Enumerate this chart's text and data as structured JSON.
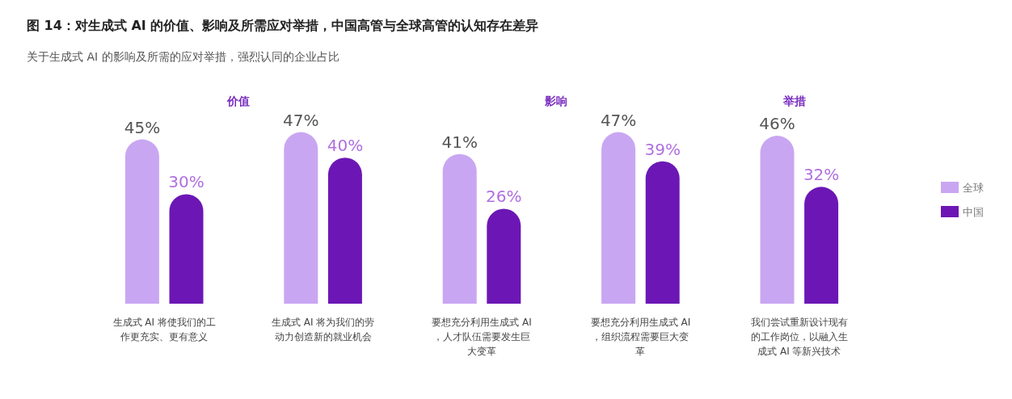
{
  "chart_data": {
    "type": "bar",
    "title": "图 14：对生成式 AI 的价值、影响及所需应对举措，中国高管与全球高管的认知存在差异",
    "subtitle": "关于生成式 AI 的影响及所需的应对举措，强烈认同的企业占比",
    "categories": [
      "生成式 AI 将使我们的工作更充实、更有意义",
      "生成式 AI 将为我们的劳动力创造新的就业机会",
      "要想充分利用生成式 AI，人才队伍需要发生巨大变革",
      "要想充分利用生成式 AI，组织流程需要巨大变革",
      "我们尝试重新设计现有的工作岗位，以融入生成式 AI 等新兴技术"
    ],
    "series": [
      {
        "name": "全球",
        "color": "#c9a6f2",
        "values": [
          45,
          47,
          41,
          47,
          46
        ],
        "value_labels": [
          "45%",
          "47%",
          "41%",
          "47%",
          "46%"
        ]
      },
      {
        "name": "中国",
        "color": "#6c17b5",
        "values": [
          30,
          40,
          26,
          39,
          32
        ],
        "value_labels": [
          "30%",
          "40%",
          "26%",
          "39%",
          "32%"
        ]
      }
    ],
    "annotations": [
      "价值",
      "影响",
      "举措"
    ],
    "legend": "right"
  }
}
